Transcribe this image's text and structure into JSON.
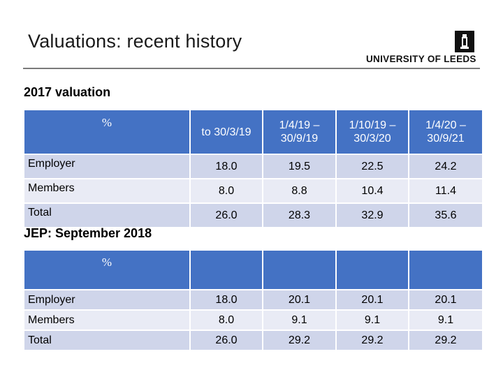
{
  "slide": {
    "title": "Valuations: recent history",
    "logo_text": "UNIVERSITY OF LEEDS"
  },
  "valuation_2017": {
    "heading": "2017 valuation",
    "header_unit": "%",
    "columns": [
      "to 30/3/19",
      "1/4/19 – 30/9/19",
      "1/10/19 – 30/3/20",
      "1/4/20 – 30/9/21"
    ],
    "rows": [
      {
        "label": "Employer",
        "values": [
          "18.0",
          "19.5",
          "22.5",
          "24.2"
        ]
      },
      {
        "label": "Members",
        "values": [
          "8.0",
          "8.8",
          "10.4",
          "11.4"
        ]
      },
      {
        "label": "Total",
        "values": [
          "26.0",
          "28.3",
          "32.9",
          "35.6"
        ]
      }
    ]
  },
  "jep_2018": {
    "heading": "JEP: September 2018",
    "header_unit": "%",
    "rows": [
      {
        "label": "Employer",
        "values": [
          "18.0",
          "20.1",
          "20.1",
          "20.1"
        ]
      },
      {
        "label": "Members",
        "values": [
          "8.0",
          "9.1",
          "9.1",
          "9.1"
        ]
      },
      {
        "label": "Total",
        "values": [
          "26.0",
          "29.2",
          "29.2",
          "29.2"
        ]
      }
    ]
  },
  "colors": {
    "header_fill": "#4472c4",
    "band_dark": "#cfd5ea",
    "band_light": "#e9ebf5"
  }
}
